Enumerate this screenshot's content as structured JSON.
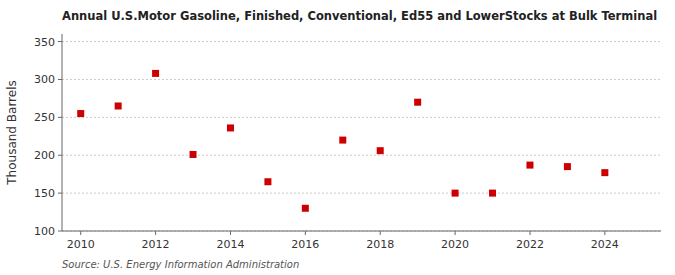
{
  "chart_data": {
    "type": "scatter",
    "title": "Annual U.S.Motor Gasoline, Finished, Conventional, Ed55 and LowerStocks at Bulk Terminal",
    "y_label": "Thousand Barrels",
    "annotation": "Source: U.S. Energy Information Administration",
    "x": [
      2010,
      2011,
      2012,
      2013,
      2014,
      2015,
      2016,
      2017,
      2018,
      2019,
      2020,
      2021,
      2022,
      2023,
      2024
    ],
    "values": [
      255,
      265,
      308,
      201,
      236,
      165,
      130,
      220,
      206,
      270,
      150,
      150,
      187,
      185,
      177
    ],
    "color": "#cc0000",
    "marker": "square",
    "xlim": [
      2009.5,
      2025.5
    ],
    "xticks": [
      2010,
      2012,
      2014,
      2016,
      2018,
      2020,
      2022,
      2024
    ],
    "ylim": [
      100,
      360
    ],
    "yticks": [
      100,
      150,
      200,
      250,
      300,
      350
    ],
    "grid": true
  }
}
